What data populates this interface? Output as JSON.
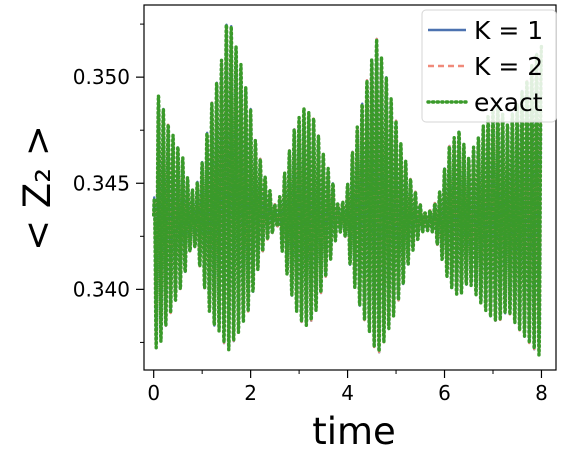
{
  "chart_data": {
    "type": "line",
    "title": "",
    "xlabel": "time",
    "ylabel": "< Z₂ >",
    "xlim": [
      -0.2,
      8.3
    ],
    "ylim": [
      0.3362,
      0.3534
    ],
    "x_ticks": [
      0,
      2,
      4,
      6,
      8
    ],
    "x_tick_labels": [
      "0",
      "2",
      "4",
      "6",
      "8"
    ],
    "x_minor_ticks": [
      1,
      3,
      5,
      7
    ],
    "y_ticks": [
      0.34,
      0.345,
      0.35
    ],
    "y_tick_labels": [
      "0.340",
      "0.345",
      "0.350"
    ],
    "y_minor_ticks": [
      0.3375,
      0.3425,
      0.3475,
      0.3525
    ],
    "grid": false,
    "legend_position": "top-right",
    "oscillation_period": 0.1,
    "signal_center": 0.3432,
    "envelope": {
      "t": [
        0.0,
        0.05,
        0.1,
        0.3,
        0.6,
        0.75,
        0.85,
        1.0,
        1.2,
        1.4,
        1.5,
        1.6,
        1.8,
        2.0,
        2.1,
        2.3,
        2.5,
        2.55,
        2.7,
        2.9,
        3.1,
        3.3,
        3.5,
        3.7,
        3.8,
        3.95,
        4.1,
        4.3,
        4.5,
        4.6,
        4.7,
        4.9,
        5.1,
        5.3,
        5.5,
        5.6,
        5.75,
        5.9,
        6.1,
        6.3,
        6.5,
        6.7,
        6.9,
        7.1,
        7.3,
        7.5,
        7.7,
        7.9,
        8.0
      ],
      "upper": [
        0.3435,
        0.349,
        0.3492,
        0.3478,
        0.3462,
        0.3448,
        0.3446,
        0.346,
        0.3488,
        0.3508,
        0.3526,
        0.3524,
        0.3506,
        0.3485,
        0.347,
        0.3453,
        0.344,
        0.3438,
        0.3455,
        0.3476,
        0.3486,
        0.3481,
        0.3464,
        0.345,
        0.344,
        0.3442,
        0.3465,
        0.3488,
        0.3509,
        0.3518,
        0.351,
        0.349,
        0.3469,
        0.3452,
        0.344,
        0.3436,
        0.3438,
        0.3446,
        0.3468,
        0.3475,
        0.3462,
        0.3472,
        0.3482,
        0.3487,
        0.3478,
        0.3488,
        0.3499,
        0.3512,
        0.3515
      ],
      "lower": [
        0.3425,
        0.3372,
        0.3372,
        0.3386,
        0.3403,
        0.3418,
        0.342,
        0.3406,
        0.3384,
        0.3379,
        0.337,
        0.3373,
        0.3382,
        0.3392,
        0.3405,
        0.3422,
        0.3428,
        0.343,
        0.3412,
        0.3392,
        0.3382,
        0.3386,
        0.3402,
        0.3418,
        0.3428,
        0.3425,
        0.3405,
        0.3388,
        0.3377,
        0.3368,
        0.3372,
        0.3384,
        0.3398,
        0.3416,
        0.3426,
        0.3428,
        0.3427,
        0.3418,
        0.3402,
        0.3396,
        0.3404,
        0.3395,
        0.3388,
        0.3384,
        0.339,
        0.3382,
        0.3376,
        0.337,
        0.3368
      ]
    },
    "series": [
      {
        "name": "K = 1",
        "legend_label": "K = 1",
        "color": "#4c72b0",
        "style": "solid"
      },
      {
        "name": "K = 2",
        "legend_label": "K = 2",
        "color": "#f08a7a",
        "style": "dashed"
      },
      {
        "name": "exact",
        "legend_label": "exact",
        "color": "#3a9a2a",
        "style": "dotted"
      }
    ]
  }
}
